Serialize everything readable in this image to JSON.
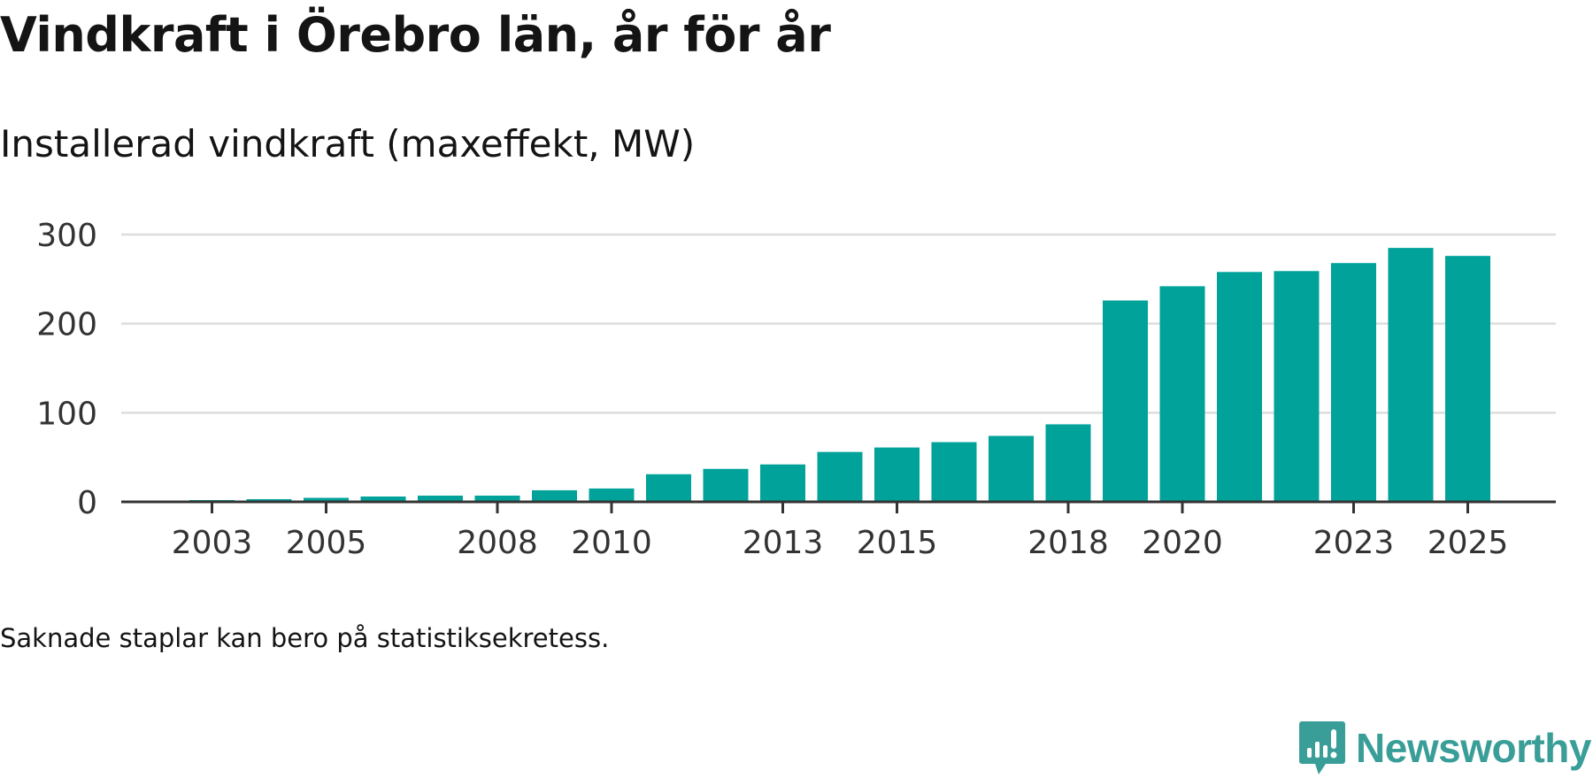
{
  "title": "Vindkraft i Örebro län, år för år",
  "subtitle": "Installerad vindkraft (maxeffekt, MW)",
  "footnote": "Saknade staplar kan bero på statistiksekretess.",
  "brand": {
    "name": "Newsworthy",
    "color": "#3a9e98"
  },
  "colors": {
    "bar": "#00a29a",
    "grid": "#dddddd",
    "axis": "#333333",
    "text": "#141414",
    "tick_text": "#333333"
  },
  "chart_data": {
    "type": "bar",
    "title": "Installerad vindkraft (maxeffekt, MW)",
    "xlabel": "",
    "ylabel": "",
    "ylim": [
      0,
      300
    ],
    "yticks": [
      0,
      100,
      200,
      300
    ],
    "grid": true,
    "categories": [
      "2002",
      "2003",
      "2004",
      "2005",
      "2006",
      "2007",
      "2008",
      "2009",
      "2010",
      "2011",
      "2012",
      "2013",
      "2014",
      "2015",
      "2016",
      "2017",
      "2018",
      "2019",
      "2020",
      "2021",
      "2022",
      "2023",
      "2024",
      "2025"
    ],
    "values": [
      0,
      2,
      3,
      4.5,
      6,
      7,
      7,
      13,
      15,
      31,
      37,
      42,
      56,
      61,
      67,
      74,
      87,
      226,
      242,
      258,
      259,
      268,
      285,
      276
    ],
    "xtick_labels": [
      "2003",
      "2005",
      "2008",
      "2010",
      "2013",
      "2015",
      "2018",
      "2020",
      "2023",
      "2025"
    ]
  }
}
